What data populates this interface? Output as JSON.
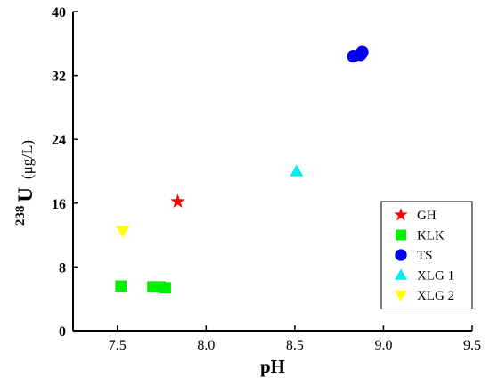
{
  "chart_data": {
    "type": "scatter",
    "title": "",
    "xlabel": "pH",
    "ylabel": {
      "sup": "238",
      "main": "U",
      "unit": "(μg/L)"
    },
    "xlim": [
      7.25,
      9.5
    ],
    "ylim": [
      0,
      40
    ],
    "xticks": [
      "7.5",
      "8.0",
      "8.5",
      "9.0",
      "9.5"
    ],
    "xtick_values": [
      7.5,
      8.0,
      8.5,
      9.0,
      9.5
    ],
    "yticks": [
      "0",
      "8",
      "16",
      "24",
      "32",
      "40"
    ],
    "ytick_values": [
      0,
      8,
      16,
      24,
      32,
      40
    ],
    "grid": false,
    "legend_position": "bottom-right",
    "series": [
      {
        "name": "GH",
        "marker": "star",
        "color": "#ff0000",
        "points": [
          [
            7.84,
            16.2
          ]
        ]
      },
      {
        "name": "KLK",
        "marker": "square",
        "color": "#00ee00",
        "points": [
          [
            7.52,
            5.6
          ],
          [
            7.7,
            5.5
          ],
          [
            7.74,
            5.5
          ],
          [
            7.77,
            5.4
          ]
        ]
      },
      {
        "name": "TS",
        "marker": "circle",
        "color": "#0000ee",
        "points": [
          [
            8.83,
            34.4
          ],
          [
            8.87,
            34.6
          ],
          [
            8.88,
            34.9
          ]
        ]
      },
      {
        "name": "XLG 1",
        "marker": "triangle-up",
        "color": "#00eeee",
        "points": [
          [
            8.51,
            20.0
          ]
        ]
      },
      {
        "name": "XLG 2",
        "marker": "triangle-down",
        "color": "#ffff00",
        "points": [
          [
            7.53,
            12.5
          ]
        ]
      }
    ]
  }
}
